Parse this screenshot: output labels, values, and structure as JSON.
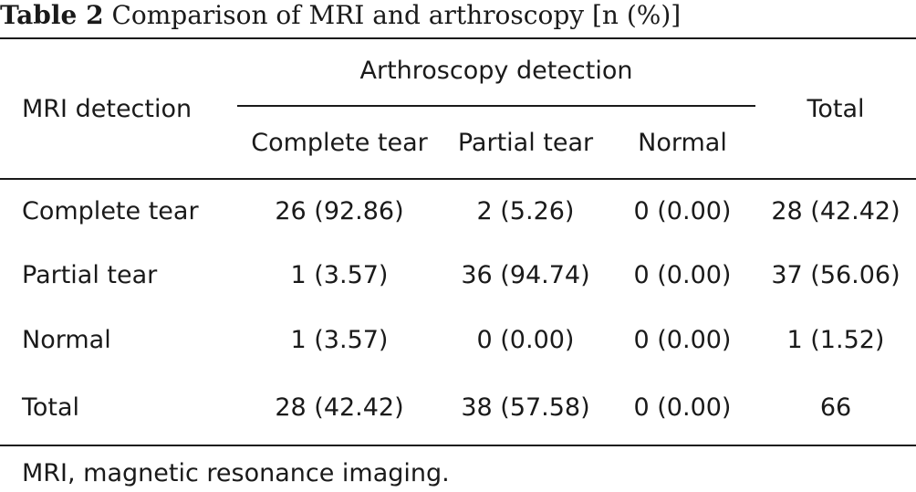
{
  "table": {
    "caption_label": "Table 2",
    "caption_text": "Comparison of MRI and arthroscopy [n (%)]",
    "row_header_label": "MRI detection",
    "group_header_label": "Arthroscopy detection",
    "total_header_label": "Total",
    "sub_headers": [
      "Complete tear",
      "Partial tear",
      "Normal"
    ],
    "rows": [
      {
        "label": "Complete tear",
        "cells": [
          "26 (92.86)",
          "2 (5.26)",
          "0 (0.00)",
          "28 (42.42)"
        ]
      },
      {
        "label": "Partial tear",
        "cells": [
          "1 (3.57)",
          "36 (94.74)",
          "0 (0.00)",
          "37 (56.06)"
        ]
      },
      {
        "label": "Normal",
        "cells": [
          "1 (3.57)",
          "0 (0.00)",
          "0 (0.00)",
          "1 (1.52)"
        ]
      },
      {
        "label": "Total",
        "cells": [
          "28 (42.42)",
          "38 (57.58)",
          "0 (0.00)",
          "66"
        ]
      }
    ],
    "footnote": "MRI, magnetic resonance imaging."
  }
}
